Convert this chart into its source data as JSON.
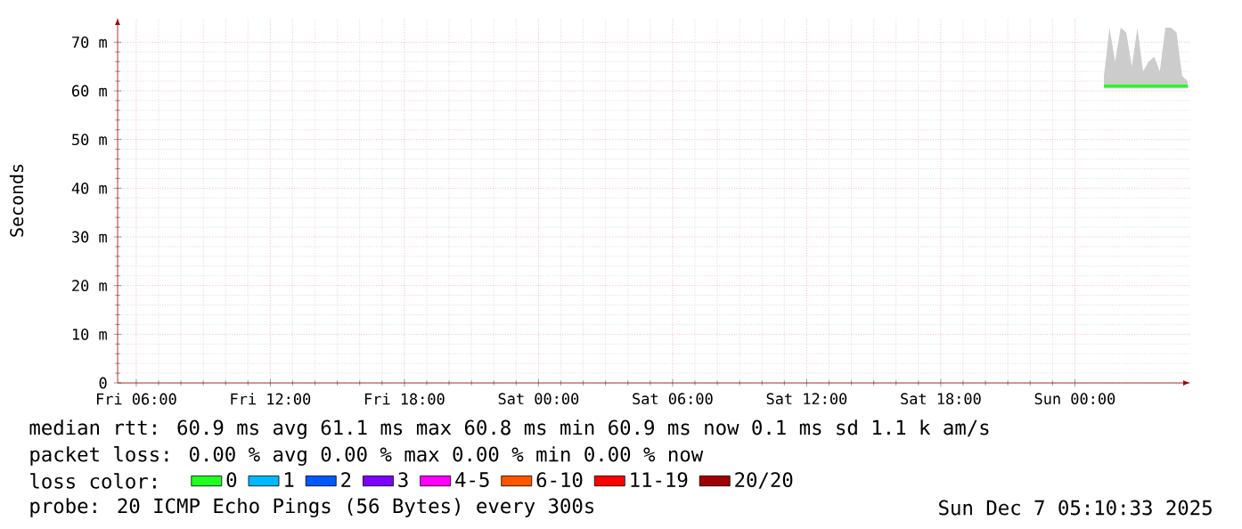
{
  "chart_data": {
    "type": "line",
    "ylabel": "Seconds",
    "legend_title": "loss color:",
    "legend": "bottom",
    "grid": true,
    "marker": "none",
    "line_style": "solid",
    "xlim": [
      "2025-12-05T05:10",
      "2025-12-07T05:10"
    ],
    "xticks": [
      {
        "value": "2025-12-05T06:00",
        "label": "Fri 06:00"
      },
      {
        "value": "2025-12-05T12:00",
        "label": "Fri 12:00"
      },
      {
        "value": "2025-12-05T18:00",
        "label": "Fri 18:00"
      },
      {
        "value": "2025-12-06T00:00",
        "label": "Sat 00:00"
      },
      {
        "value": "2025-12-06T06:00",
        "label": "Sat 06:00"
      },
      {
        "value": "2025-12-06T12:00",
        "label": "Sat 12:00"
      },
      {
        "value": "2025-12-06T18:00",
        "label": "Sat 18:00"
      },
      {
        "value": "2025-12-07T00:00",
        "label": "Sun 00:00"
      }
    ],
    "ylim": [
      0,
      75
    ],
    "yticks": [
      0,
      {
        "value": 10,
        "label": "10 m"
      },
      {
        "value": 20,
        "label": "20 m"
      },
      {
        "value": 30,
        "label": "30 m"
      },
      {
        "value": 40,
        "label": "40 m"
      },
      {
        "value": 50,
        "label": "50 m"
      },
      {
        "value": 60,
        "label": "60 m"
      },
      {
        "value": 70,
        "label": "70 m"
      }
    ],
    "x": [
      "2025-12-07T01:18",
      "2025-12-07T01:33",
      "2025-12-07T01:48",
      "2025-12-07T02:03",
      "2025-12-07T02:18",
      "2025-12-07T02:33",
      "2025-12-07T02:48",
      "2025-12-07T03:03",
      "2025-12-07T03:18",
      "2025-12-07T03:33",
      "2025-12-07T03:48",
      "2025-12-07T04:03",
      "2025-12-07T04:18",
      "2025-12-07T04:33",
      "2025-12-07T04:48",
      "2025-12-07T05:03"
    ],
    "series": [
      {
        "name": "0",
        "color": "#20ff20",
        "values": [
          61,
          61,
          61,
          61,
          61,
          61,
          61,
          61,
          61,
          61,
          61,
          61,
          61,
          61,
          61,
          61
        ],
        "lower": [
          60.5,
          60.5,
          60.5,
          60.5,
          60.5,
          60.5,
          60.5,
          60.5,
          60.5,
          60.5,
          60.5,
          60.5,
          60.5,
          60.5,
          60.5,
          60.5
        ],
        "upper": [
          63,
          73,
          66,
          73,
          72,
          65,
          73,
          64,
          66,
          67,
          64,
          73,
          73,
          72,
          63,
          62
        ]
      },
      {
        "name": "1",
        "color": "#00b8ff",
        "values": [
          null,
          null,
          null,
          null,
          null,
          null,
          null,
          null,
          null,
          null,
          null,
          null,
          null,
          null,
          null,
          null
        ]
      },
      {
        "name": "2",
        "color": "#0059ff",
        "values": [
          null,
          null,
          null,
          null,
          null,
          null,
          null,
          null,
          null,
          null,
          null,
          null,
          null,
          null,
          null,
          null
        ]
      },
      {
        "name": "3",
        "color": "#7e00ff",
        "values": [
          null,
          null,
          null,
          null,
          null,
          null,
          null,
          null,
          null,
          null,
          null,
          null,
          null,
          null,
          null,
          null
        ]
      },
      {
        "name": "4-5",
        "color": "#ff00ff",
        "values": [
          null,
          null,
          null,
          null,
          null,
          null,
          null,
          null,
          null,
          null,
          null,
          null,
          null,
          null,
          null,
          null
        ]
      },
      {
        "name": "6-10",
        "color": "#ff5500",
        "values": [
          null,
          null,
          null,
          null,
          null,
          null,
          null,
          null,
          null,
          null,
          null,
          null,
          null,
          null,
          null,
          null
        ]
      },
      {
        "name": "11-19",
        "color": "#ff0000",
        "values": [
          null,
          null,
          null,
          null,
          null,
          null,
          null,
          null,
          null,
          null,
          null,
          null,
          null,
          null,
          null,
          null
        ]
      },
      {
        "name": "20/20",
        "color": "#a10000",
        "values": [
          null,
          null,
          null,
          null,
          null,
          null,
          null,
          null,
          null,
          null,
          null,
          null,
          null,
          null,
          null,
          null
        ]
      }
    ],
    "annotations": [
      "median rtt:  60.9 ms avg  61.1 ms max  60.8 ms min  60.9 ms now  0.1 ms sd  1.1 k am/s",
      "packet loss: 0.00 % avg  0.00 % max  0.00 % min  0.00 % now",
      "probe:       20 ICMP Echo Pings (56 Bytes) every 300s",
      "Sun Dec  7 05:10:33 2025"
    ]
  }
}
